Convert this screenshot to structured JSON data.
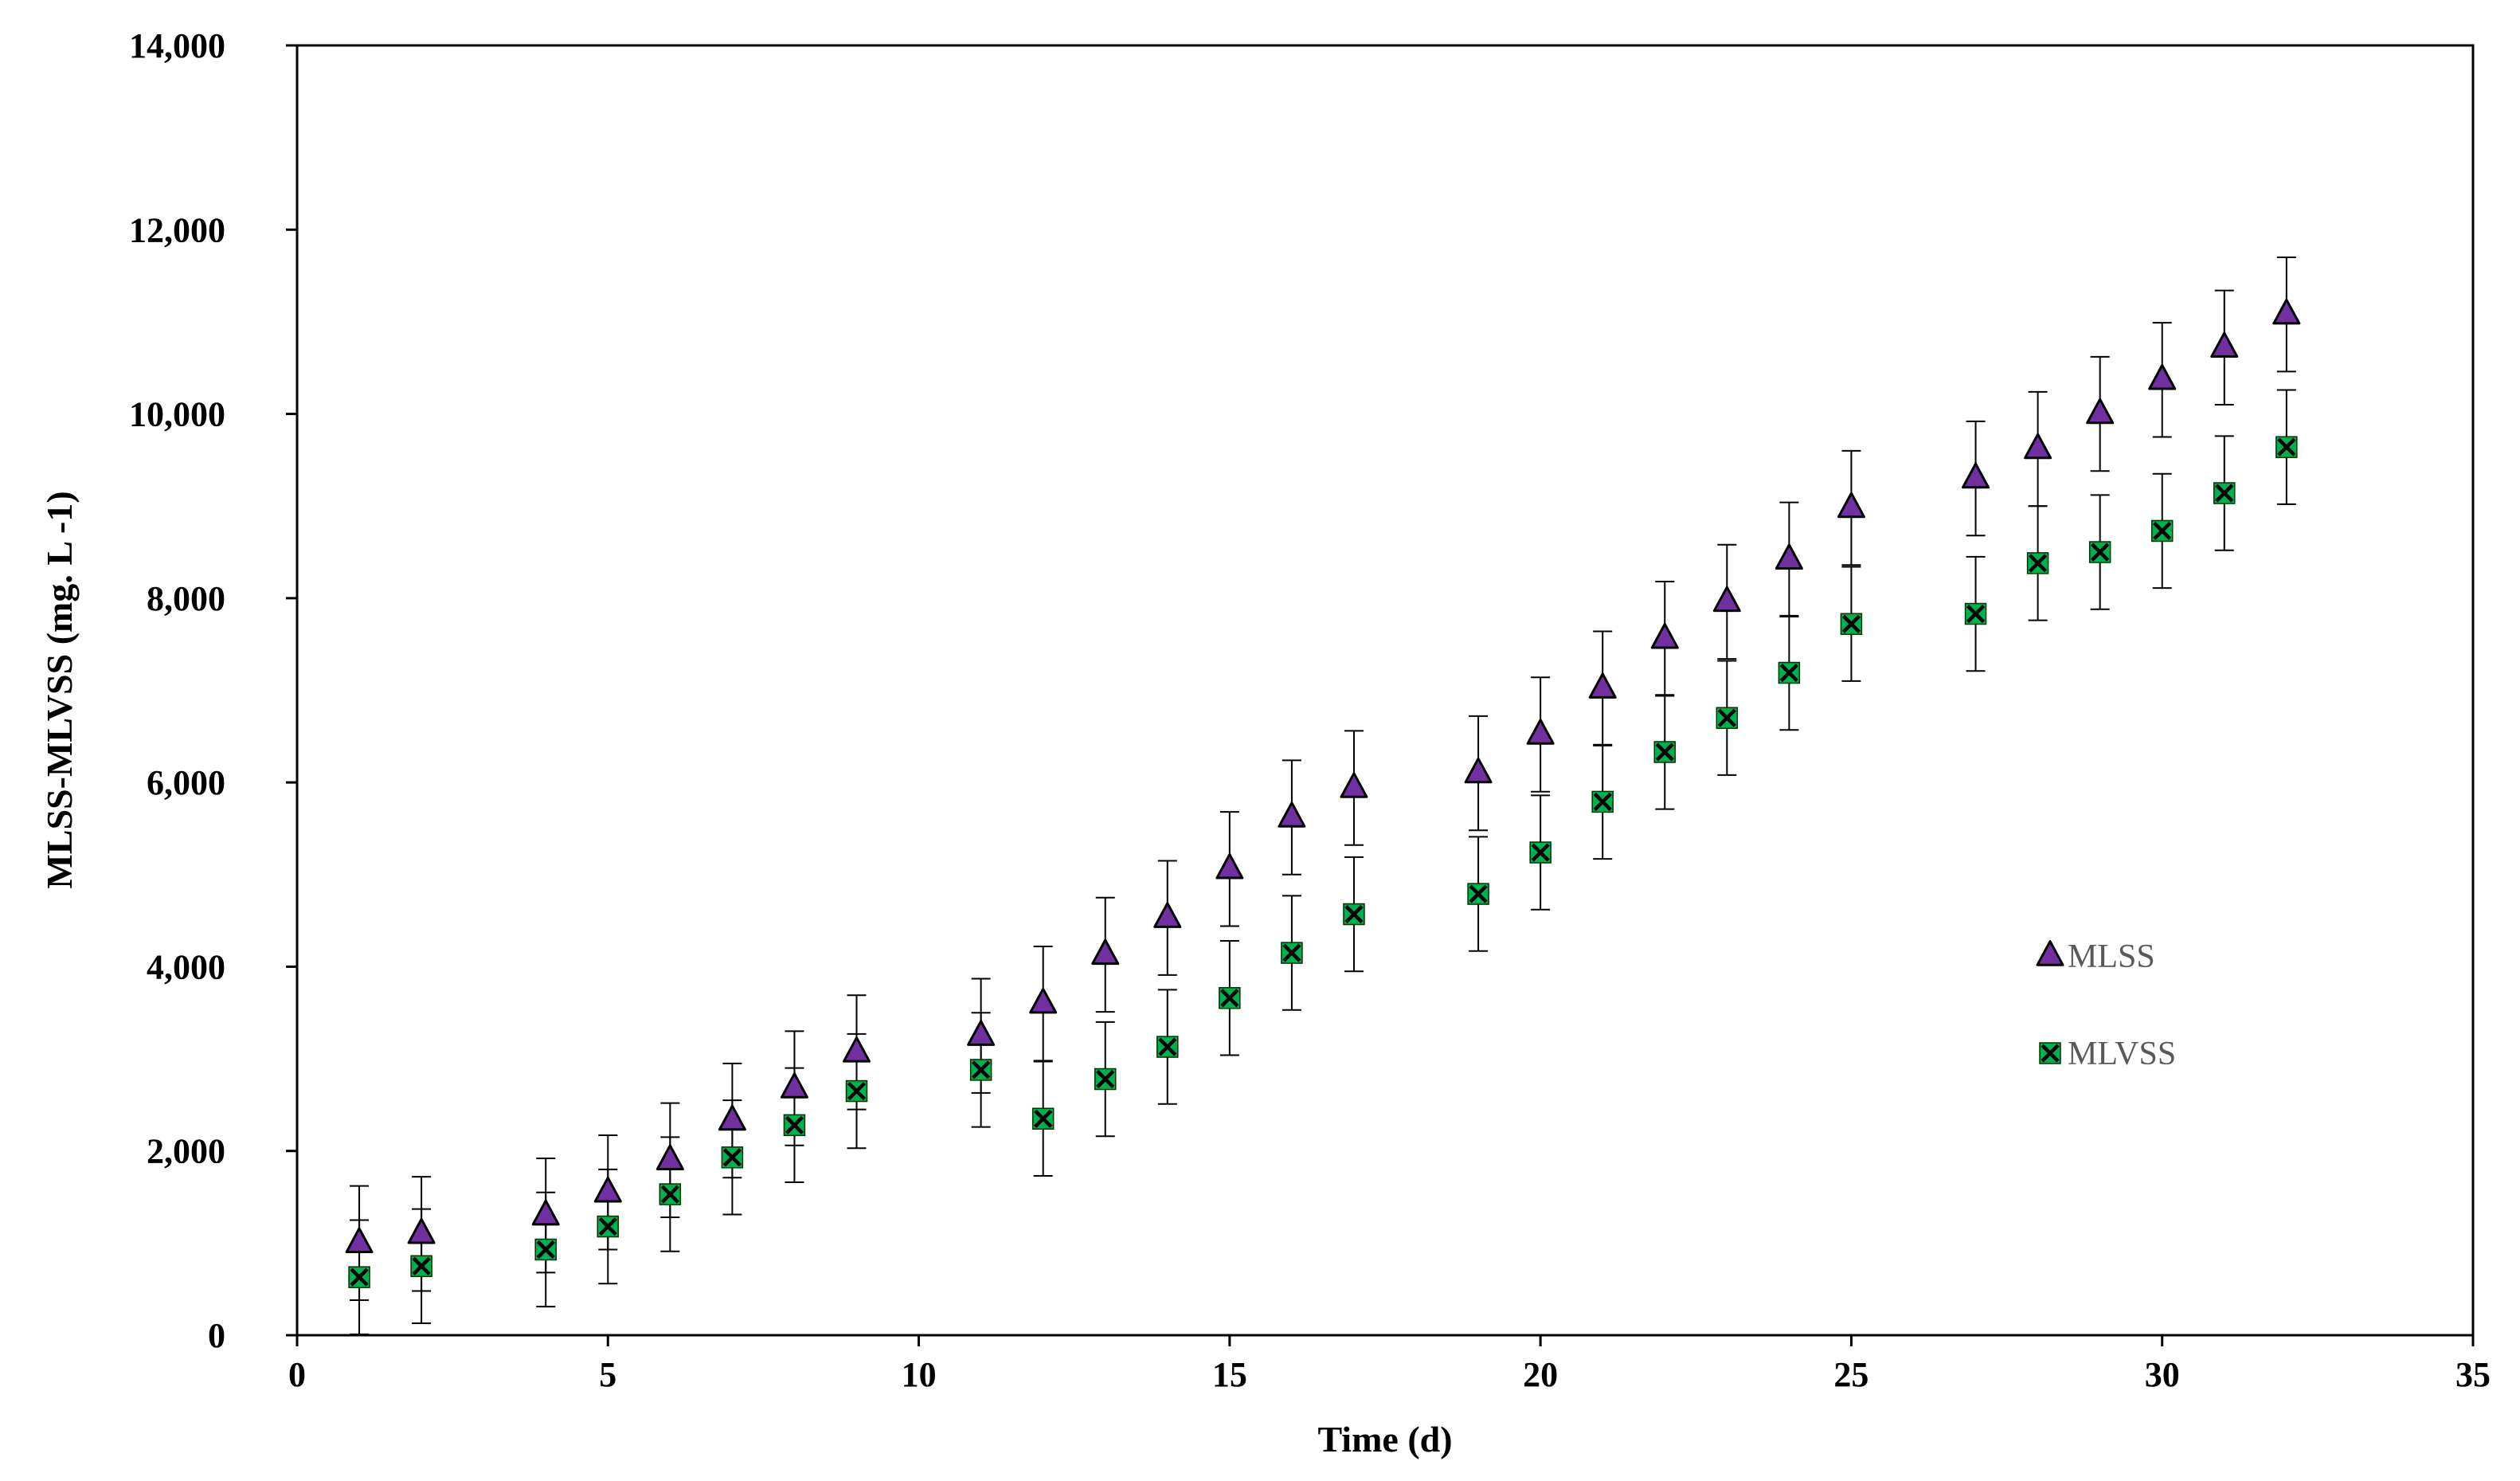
{
  "chart_data": {
    "type": "scatter",
    "title": "",
    "xlabel": "Time (d)",
    "ylabel": "MLSS-MLVSS (mg. L -1)",
    "xlim": [
      0,
      35
    ],
    "ylim": [
      0,
      14000
    ],
    "xticks": [
      0,
      5,
      10,
      15,
      20,
      25,
      30,
      35
    ],
    "xtick_labels": [
      "0",
      "5",
      "10",
      "15",
      "20",
      "25",
      "30",
      "35"
    ],
    "yticks": [
      0,
      2000,
      4000,
      6000,
      8000,
      10000,
      12000,
      14000
    ],
    "ytick_labels": [
      "0",
      "2,000",
      "4,000",
      "6,000",
      "8,000",
      "10,000",
      "12,000",
      "14,000"
    ],
    "grid": false,
    "legend_position": "right",
    "error_bar": 620,
    "series": [
      {
        "name": "MLSS",
        "marker": "triangle",
        "color": "#7030A0",
        "x": [
          1,
          2,
          4,
          5,
          6,
          7,
          8,
          9,
          11,
          12,
          13,
          14,
          15,
          16,
          17,
          19,
          20,
          21,
          22,
          23,
          24,
          25,
          27,
          28,
          29,
          30,
          31,
          32
        ],
        "y": [
          1000,
          1100,
          1300,
          1550,
          1900,
          2330,
          2680,
          3070,
          3250,
          3600,
          4130,
          4530,
          5060,
          5620,
          5940,
          6100,
          6520,
          7020,
          7560,
          7960,
          8420,
          8980,
          9300,
          9620,
          10000,
          10370,
          10720,
          11080
        ]
      },
      {
        "name": "MLVSS",
        "marker": "x-square",
        "color": "#00B050",
        "x": [
          1,
          2,
          4,
          5,
          6,
          7,
          8,
          9,
          11,
          12,
          13,
          14,
          15,
          16,
          17,
          19,
          20,
          21,
          22,
          23,
          24,
          25,
          27,
          28,
          29,
          30,
          31,
          32
        ],
        "y": [
          630,
          750,
          930,
          1180,
          1530,
          1930,
          2280,
          2650,
          2880,
          2350,
          2780,
          3130,
          3660,
          4150,
          4570,
          4790,
          5240,
          5790,
          6330,
          6700,
          7190,
          7720,
          7830,
          8380,
          8500,
          8730,
          9140,
          9640
        ]
      }
    ]
  }
}
